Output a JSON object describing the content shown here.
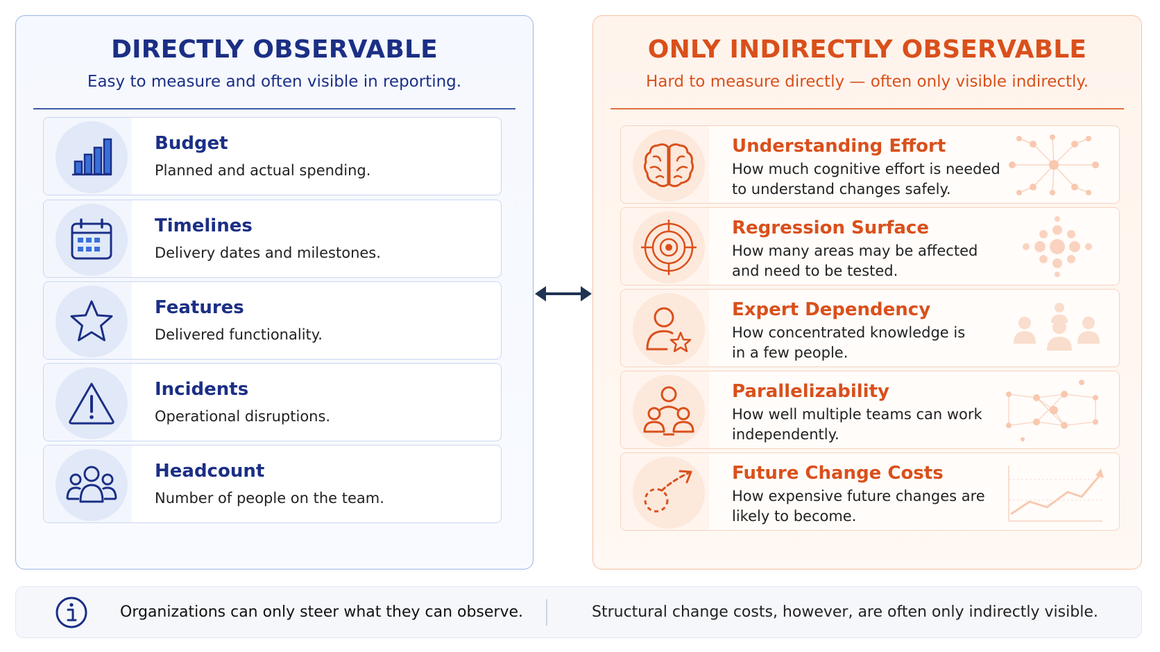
{
  "left": {
    "title": "DIRECTLY OBSERVABLE",
    "subtitle": "Easy to measure and often visible in reporting.",
    "items": [
      {
        "title": "Budget",
        "desc": "Planned and actual spending.",
        "icon": "bar-chart-icon"
      },
      {
        "title": "Timelines",
        "desc": "Delivery dates and milestones.",
        "icon": "calendar-icon"
      },
      {
        "title": "Features",
        "desc": "Delivered functionality.",
        "icon": "star-icon"
      },
      {
        "title": "Incidents",
        "desc": "Operational disruptions.",
        "icon": "warning-icon"
      },
      {
        "title": "Headcount",
        "desc": "Number of people on the team.",
        "icon": "people-icon"
      }
    ]
  },
  "right": {
    "title": "ONLY INDIRECTLY OBSERVABLE",
    "subtitle": "Hard to measure directly — often only visible indirectly.",
    "items": [
      {
        "title": "Understanding Effort",
        "desc1": "How much cognitive effort is needed",
        "desc2": "to understand changes safely.",
        "icon": "brain-icon"
      },
      {
        "title": "Regression Surface",
        "desc1": "How many areas may be affected",
        "desc2": "and need to be tested.",
        "icon": "target-icon"
      },
      {
        "title": "Expert Dependency",
        "desc1": "How concentrated knowledge is",
        "desc2": "in a few people.",
        "icon": "expert-star-icon"
      },
      {
        "title": "Parallelizability",
        "desc1": "How well multiple teams can work",
        "desc2": "independently.",
        "icon": "teams-icon"
      },
      {
        "title": "Future Change Costs",
        "desc1": "How expensive future changes are",
        "desc2": "likely to become.",
        "icon": "trend-arrow-icon"
      }
    ]
  },
  "bottom": {
    "left_text": "Organizations can only steer what they can observe.",
    "right_text": "Structural change costs, however, are often only indirectly visible."
  },
  "colors": {
    "blue": "#1b2f85",
    "orange": "#d9501b"
  }
}
